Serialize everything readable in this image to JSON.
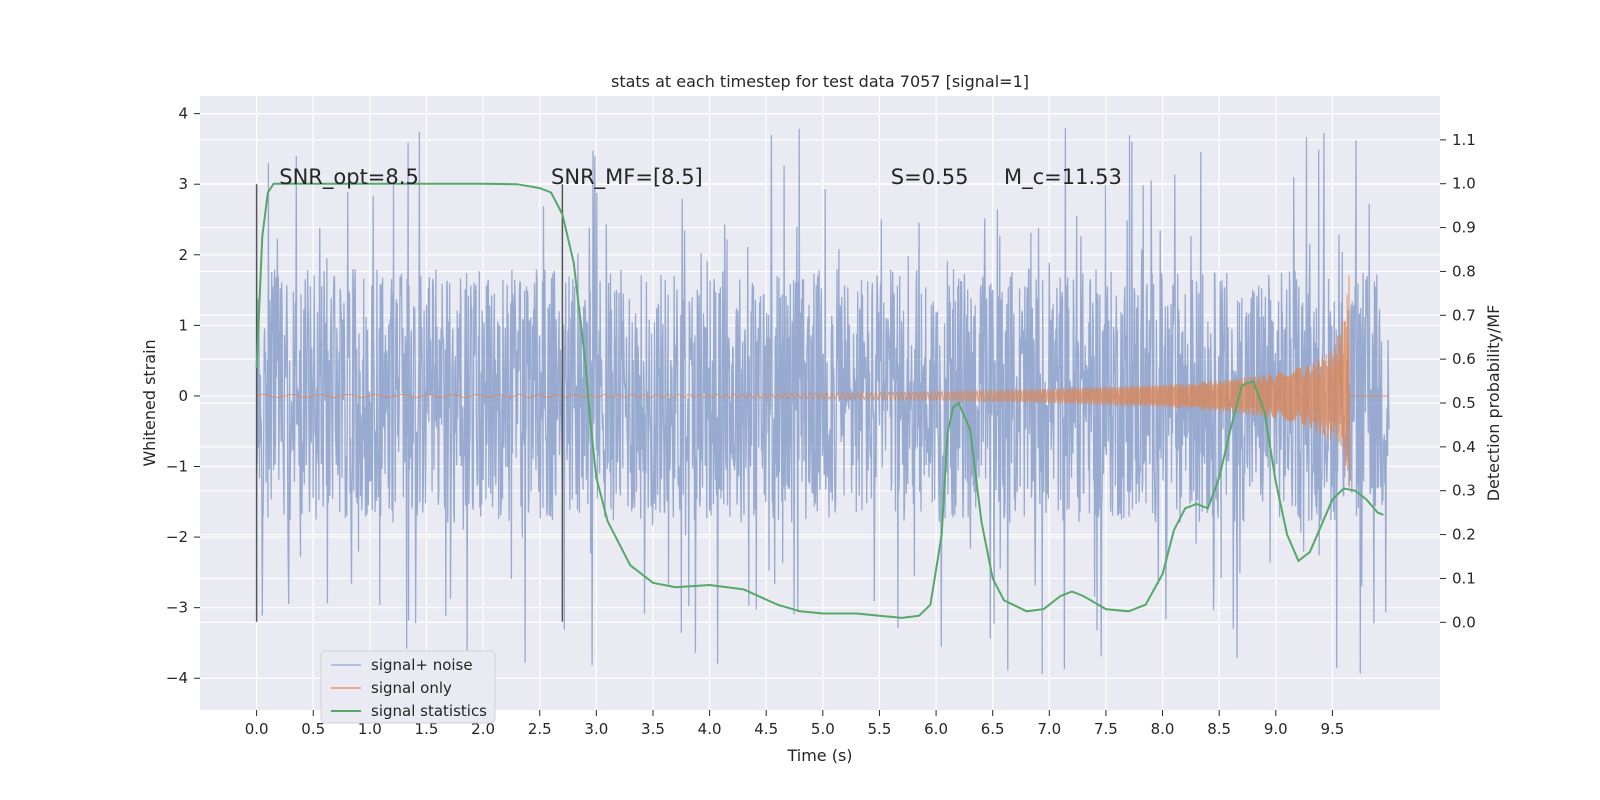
{
  "chart_data": {
    "type": "line",
    "title": "stats at each timestep for test data 7057 [signal=1]",
    "xlabel": "Time (s)",
    "ylabel_left": "Whitened strain",
    "ylabel_right": "Detection probability/MF",
    "xlim": [
      -0.5,
      10.45
    ],
    "ylim_left": [
      -4.45,
      4.25
    ],
    "ylim_right": [
      -0.2,
      1.2
    ],
    "x_ticks": [
      "0.0",
      "0.5",
      "1.0",
      "1.5",
      "2.0",
      "2.5",
      "3.0",
      "3.5",
      "4.0",
      "4.5",
      "5.0",
      "5.5",
      "6.0",
      "6.5",
      "7.0",
      "7.5",
      "8.0",
      "8.5",
      "9.0",
      "9.5"
    ],
    "y_ticks_left": [
      "−4",
      "−3",
      "−2",
      "−1",
      "0",
      "1",
      "2",
      "3",
      "4"
    ],
    "y_ticks_right": [
      "0.0",
      "0.1",
      "0.2",
      "0.3",
      "0.4",
      "0.5",
      "0.6",
      "0.7",
      "0.8",
      "0.9",
      "1.0",
      "1.1"
    ],
    "grid": true,
    "legend_position": "lower-left",
    "annotations": [
      {
        "text": "SNR_opt=8.5",
        "x": 0.2,
        "y": 3.0
      },
      {
        "text": "SNR_MF=[8.5]",
        "x": 2.6,
        "y": 3.0
      },
      {
        "text": "S=0.55",
        "x": 5.6,
        "y": 3.0
      },
      {
        "text": "M_c=11.53",
        "x": 6.6,
        "y": 3.0
      }
    ],
    "vertical_markers": [
      {
        "x": 0.0,
        "y_range": [
          -3.2,
          3.0
        ]
      },
      {
        "x": 2.7,
        "y_range": [
          -3.2,
          3.0
        ]
      }
    ],
    "series": [
      {
        "name": "signal+ noise",
        "color": "#8fa3cc",
        "kind": "noise",
        "x_range": [
          0.0,
          10.0
        ],
        "band_limits": [
          -1.8,
          1.8
        ],
        "peak_range": [
          -4.05,
          3.9
        ]
      },
      {
        "name": "signal only",
        "color": "#dd8452",
        "kind": "chirp",
        "x_range": [
          0.0,
          9.65
        ],
        "envelope": [
          [
            0.0,
            0.02
          ],
          [
            2.0,
            0.02
          ],
          [
            4.0,
            0.02
          ],
          [
            5.0,
            0.04
          ],
          [
            6.0,
            0.06
          ],
          [
            7.0,
            0.1
          ],
          [
            8.0,
            0.16
          ],
          [
            8.5,
            0.22
          ],
          [
            9.0,
            0.32
          ],
          [
            9.3,
            0.45
          ],
          [
            9.5,
            0.65
          ],
          [
            9.6,
            1.1
          ],
          [
            9.65,
            1.75
          ]
        ],
        "lower_envelope_end": -1.3
      },
      {
        "name": "signal statistics",
        "color": "#55a868",
        "kind": "line",
        "axis": "right",
        "points": [
          [
            0.0,
            0.58
          ],
          [
            0.05,
            0.88
          ],
          [
            0.1,
            0.98
          ],
          [
            0.15,
            1.0
          ],
          [
            0.5,
            1.0
          ],
          [
            1.0,
            1.0
          ],
          [
            1.5,
            1.0
          ],
          [
            2.0,
            1.0
          ],
          [
            2.3,
            0.999
          ],
          [
            2.5,
            0.99
          ],
          [
            2.6,
            0.98
          ],
          [
            2.7,
            0.93
          ],
          [
            2.8,
            0.82
          ],
          [
            2.9,
            0.6
          ],
          [
            2.95,
            0.45
          ],
          [
            3.0,
            0.33
          ],
          [
            3.1,
            0.23
          ],
          [
            3.3,
            0.13
          ],
          [
            3.5,
            0.09
          ],
          [
            3.7,
            0.08
          ],
          [
            4.0,
            0.085
          ],
          [
            4.3,
            0.075
          ],
          [
            4.6,
            0.04
          ],
          [
            4.8,
            0.025
          ],
          [
            5.0,
            0.02
          ],
          [
            5.3,
            0.02
          ],
          [
            5.5,
            0.015
          ],
          [
            5.7,
            0.01
          ],
          [
            5.85,
            0.015
          ],
          [
            5.95,
            0.04
          ],
          [
            6.05,
            0.2
          ],
          [
            6.1,
            0.43
          ],
          [
            6.15,
            0.49
          ],
          [
            6.2,
            0.5
          ],
          [
            6.3,
            0.44
          ],
          [
            6.4,
            0.23
          ],
          [
            6.5,
            0.1
          ],
          [
            6.6,
            0.05
          ],
          [
            6.8,
            0.025
          ],
          [
            6.95,
            0.03
          ],
          [
            7.1,
            0.06
          ],
          [
            7.2,
            0.07
          ],
          [
            7.3,
            0.06
          ],
          [
            7.5,
            0.03
          ],
          [
            7.7,
            0.025
          ],
          [
            7.85,
            0.04
          ],
          [
            8.0,
            0.11
          ],
          [
            8.1,
            0.21
          ],
          [
            8.2,
            0.26
          ],
          [
            8.3,
            0.27
          ],
          [
            8.4,
            0.26
          ],
          [
            8.5,
            0.33
          ],
          [
            8.6,
            0.44
          ],
          [
            8.7,
            0.54
          ],
          [
            8.8,
            0.55
          ],
          [
            8.9,
            0.48
          ],
          [
            9.0,
            0.32
          ],
          [
            9.1,
            0.2
          ],
          [
            9.2,
            0.14
          ],
          [
            9.3,
            0.16
          ],
          [
            9.4,
            0.22
          ],
          [
            9.5,
            0.28
          ],
          [
            9.6,
            0.305
          ],
          [
            9.7,
            0.3
          ],
          [
            9.8,
            0.28
          ],
          [
            9.9,
            0.25
          ],
          [
            9.95,
            0.245
          ]
        ]
      }
    ]
  }
}
